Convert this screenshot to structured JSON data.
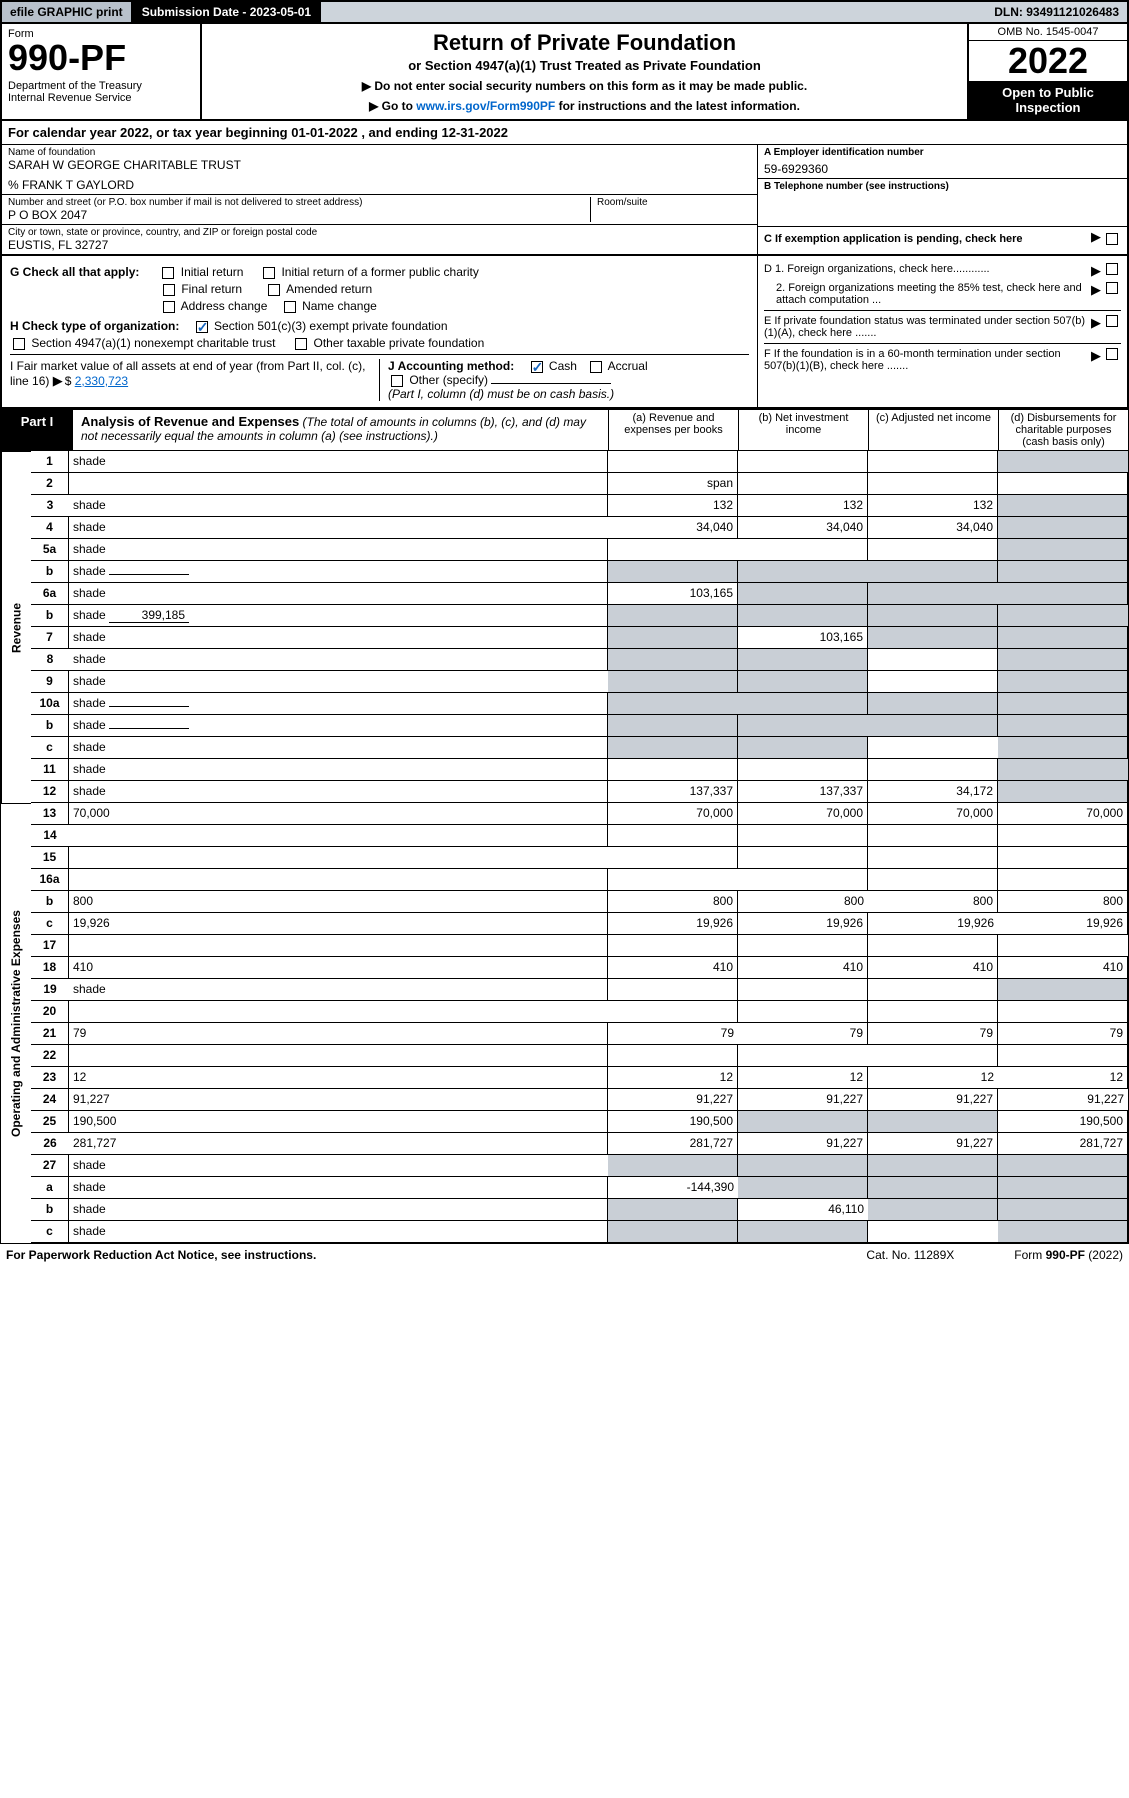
{
  "topbar": {
    "efile": "efile GRAPHIC print",
    "submission": "Submission Date - 2023-05-01",
    "dln": "DLN: 93491121026483"
  },
  "header": {
    "form_word": "Form",
    "form_num": "990-PF",
    "dept": "Department of the Treasury\nInternal Revenue Service",
    "title": "Return of Private Foundation",
    "subtitle": "or Section 4947(a)(1) Trust Treated as Private Foundation",
    "note1": "▶ Do not enter social security numbers on this form as it may be made public.",
    "note2_pre": "▶ Go to ",
    "note2_link": "www.irs.gov/Form990PF",
    "note2_post": " for instructions and the latest information.",
    "omb": "OMB No. 1545-0047",
    "year": "2022",
    "inspect": "Open to Public Inspection"
  },
  "calyear": "For calendar year 2022, or tax year beginning 01-01-2022                    , and ending 12-31-2022",
  "info": {
    "name_lbl": "Name of foundation",
    "name": "SARAH W GEORGE CHARITABLE TRUST",
    "care_of": "% FRANK T GAYLORD",
    "addr_lbl": "Number and street (or P.O. box number if mail is not delivered to street address)",
    "addr": "P O BOX 2047",
    "room_lbl": "Room/suite",
    "city_lbl": "City or town, state or province, country, and ZIP or foreign postal code",
    "city": "EUSTIS, FL  32727",
    "ein_lbl": "A Employer identification number",
    "ein": "59-6929360",
    "tel_lbl": "B Telephone number (see instructions)",
    "c_lbl": "C If exemption application is pending, check here",
    "d1": "D 1. Foreign organizations, check here............",
    "d2": "2. Foreign organizations meeting the 85% test, check here and attach computation ...",
    "e_lbl": "E  If private foundation status was terminated under section 507(b)(1)(A), check here .......",
    "f_lbl": "F  If the foundation is in a 60-month termination under section 507(b)(1)(B), check here .......",
    "g_lbl": "G Check all that apply:",
    "g_opts": [
      "Initial return",
      "Initial return of a former public charity",
      "Final return",
      "Amended return",
      "Address change",
      "Name change"
    ],
    "h_lbl": "H Check type of organization:",
    "h_opts": [
      "Section 501(c)(3) exempt private foundation",
      "Section 4947(a)(1) nonexempt charitable trust",
      "Other taxable private foundation"
    ],
    "i_lbl": "I Fair market value of all assets at end of year (from Part II, col. (c), line 16)",
    "i_val": "2,330,723",
    "j_lbl": "J Accounting method:",
    "j_opts": [
      "Cash",
      "Accrual",
      "Other (specify)"
    ],
    "j_note": "(Part I, column (d) must be on cash basis.)"
  },
  "part1": {
    "label": "Part I",
    "title": "Analysis of Revenue and Expenses",
    "title_note": "(The total of amounts in columns (b), (c), and (d) may not necessarily equal the amounts in column (a) (see instructions).)",
    "cols": {
      "a": "(a)   Revenue and expenses per books",
      "b": "(b)  Net investment income",
      "c": "(c)  Adjusted net income",
      "d": "(d)  Disbursements for charitable purposes (cash basis only)"
    }
  },
  "sections": {
    "revenue": "Revenue",
    "expenses": "Operating and Administrative Expenses"
  },
  "rows": [
    {
      "n": "1",
      "d": "shade",
      "a": "",
      "b": "",
      "c": ""
    },
    {
      "n": "2",
      "d": "",
      "a": "span",
      "b": "",
      "c": ""
    },
    {
      "n": "3",
      "d": "shade",
      "a": "132",
      "b": "132",
      "c": "132"
    },
    {
      "n": "4",
      "d": "shade",
      "a": "34,040",
      "b": "34,040",
      "c": "34,040"
    },
    {
      "n": "5a",
      "d": "shade",
      "a": "",
      "b": "",
      "c": ""
    },
    {
      "n": "b",
      "d": "shade",
      "a": "shade",
      "b": "shade",
      "c": "shade",
      "inline": ""
    },
    {
      "n": "6a",
      "d": "shade",
      "a": "103,165",
      "b": "shade",
      "c": "shade"
    },
    {
      "n": "b",
      "d": "shade",
      "a": "shade",
      "b": "shade",
      "c": "shade",
      "inline": "399,185"
    },
    {
      "n": "7",
      "d": "shade",
      "a": "shade",
      "b": "103,165",
      "c": "shade"
    },
    {
      "n": "8",
      "d": "shade",
      "a": "shade",
      "b": "shade",
      "c": ""
    },
    {
      "n": "9",
      "d": "shade",
      "a": "shade",
      "b": "shade",
      "c": ""
    },
    {
      "n": "10a",
      "d": "shade",
      "a": "shade",
      "b": "shade",
      "c": "shade",
      "inline": ""
    },
    {
      "n": "b",
      "d": "shade",
      "a": "shade",
      "b": "shade",
      "c": "shade",
      "inline": ""
    },
    {
      "n": "c",
      "d": "shade",
      "a": "shade",
      "b": "shade",
      "c": ""
    },
    {
      "n": "11",
      "d": "shade",
      "a": "",
      "b": "",
      "c": ""
    },
    {
      "n": "12",
      "d": "shade",
      "a": "137,337",
      "b": "137,337",
      "c": "34,172"
    },
    {
      "n": "13",
      "d": "70,000",
      "a": "70,000",
      "b": "70,000",
      "c": "70,000"
    },
    {
      "n": "14",
      "d": "",
      "a": "",
      "b": "",
      "c": ""
    },
    {
      "n": "15",
      "d": "",
      "a": "",
      "b": "",
      "c": ""
    },
    {
      "n": "16a",
      "d": "",
      "a": "",
      "b": "",
      "c": ""
    },
    {
      "n": "b",
      "d": "800",
      "a": "800",
      "b": "800",
      "c": "800"
    },
    {
      "n": "c",
      "d": "19,926",
      "a": "19,926",
      "b": "19,926",
      "c": "19,926"
    },
    {
      "n": "17",
      "d": "",
      "a": "",
      "b": "",
      "c": ""
    },
    {
      "n": "18",
      "d": "410",
      "a": "410",
      "b": "410",
      "c": "410"
    },
    {
      "n": "19",
      "d": "shade",
      "a": "",
      "b": "",
      "c": ""
    },
    {
      "n": "20",
      "d": "",
      "a": "",
      "b": "",
      "c": ""
    },
    {
      "n": "21",
      "d": "79",
      "a": "79",
      "b": "79",
      "c": "79"
    },
    {
      "n": "22",
      "d": "",
      "a": "",
      "b": "",
      "c": ""
    },
    {
      "n": "23",
      "d": "12",
      "a": "12",
      "b": "12",
      "c": "12"
    },
    {
      "n": "24",
      "d": "91,227",
      "a": "91,227",
      "b": "91,227",
      "c": "91,227"
    },
    {
      "n": "25",
      "d": "190,500",
      "a": "190,500",
      "b": "shade",
      "c": "shade"
    },
    {
      "n": "26",
      "d": "281,727",
      "a": "281,727",
      "b": "91,227",
      "c": "91,227"
    },
    {
      "n": "27",
      "d": "shade",
      "a": "shade",
      "b": "shade",
      "c": "shade"
    },
    {
      "n": "a",
      "d": "shade",
      "a": "-144,390",
      "b": "shade",
      "c": "shade"
    },
    {
      "n": "b",
      "d": "shade",
      "a": "shade",
      "b": "46,110",
      "c": "shade"
    },
    {
      "n": "c",
      "d": "shade",
      "a": "shade",
      "b": "shade",
      "c": ""
    }
  ],
  "footer": {
    "l": "For Paperwork Reduction Act Notice, see instructions.",
    "m": "Cat. No. 11289X",
    "r": "Form 990-PF (2022)"
  },
  "colors": {
    "shade": "#c9cfd6",
    "link": "#0066cc",
    "topbar_bg": "#cdd4db"
  }
}
